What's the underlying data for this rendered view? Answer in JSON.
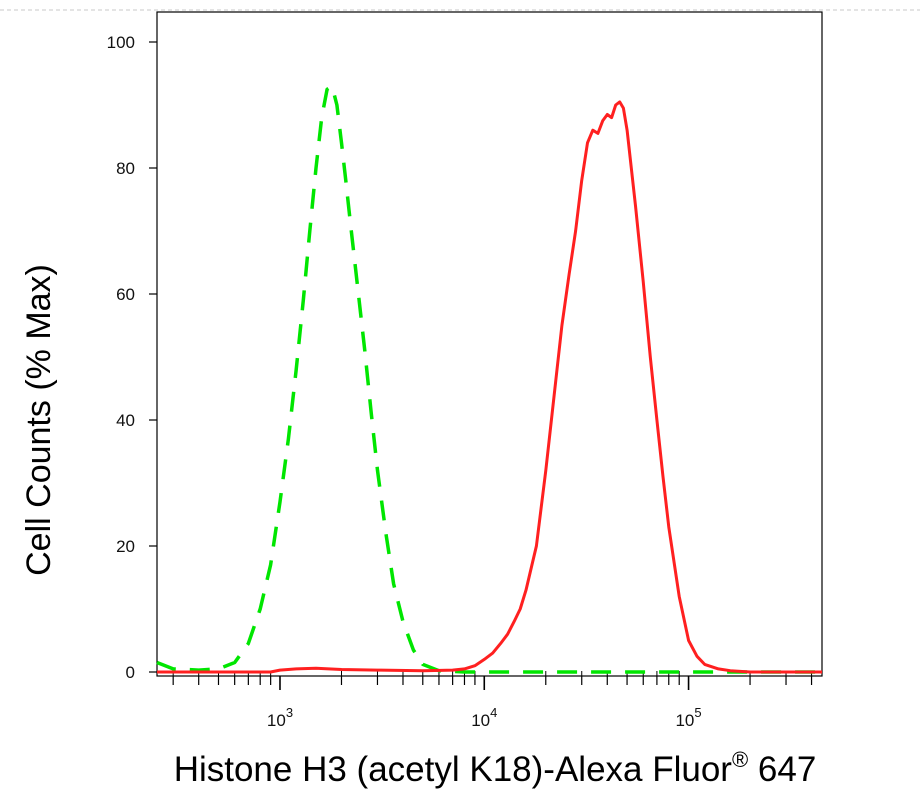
{
  "chart_data": {
    "type": "line",
    "xlabel": "Histone H3 (acetyl K18)-Alexa Fluor",
    "xlabel_sup": "®",
    "xlabel_suffix": " 647",
    "ylabel": "Cell Counts (% Max)",
    "x_scale": "log",
    "xlim": [
      250,
      450000
    ],
    "ylim": [
      0,
      100
    ],
    "y_ticks": [
      0,
      20,
      40,
      60,
      80,
      100
    ],
    "y_tick_labels": [
      "0",
      "20",
      "40",
      "60",
      "80",
      "100"
    ],
    "x_major_ticks": [
      1000,
      10000,
      100000
    ],
    "x_tick_labels": [
      {
        "base": "10",
        "exp": "3"
      },
      {
        "base": "10",
        "exp": "4"
      },
      {
        "base": "10",
        "exp": "5"
      }
    ],
    "grid": false,
    "series": [
      {
        "color": "#00e600",
        "style": "dashed",
        "x": [
          250,
          300,
          400,
          500,
          600,
          700,
          800,
          900,
          1000,
          1100,
          1200,
          1300,
          1400,
          1500,
          1600,
          1700,
          1800,
          1900,
          2000,
          2100,
          2200,
          2400,
          2600,
          2800,
          3000,
          3300,
          3600,
          4000,
          4500,
          5000,
          6000,
          8000,
          10000,
          20000,
          50000,
          100000,
          200000,
          450000
        ],
        "y": [
          1.5,
          0.5,
          0.3,
          0.5,
          1.5,
          4.5,
          10,
          17,
          27,
          37,
          48,
          59,
          70,
          80,
          88,
          92.5,
          93,
          90,
          84,
          78,
          72,
          61,
          51,
          41,
          32,
          22,
          14,
          8,
          3.5,
          1.2,
          0.2,
          0,
          0,
          0,
          0,
          0,
          0,
          0
        ]
      },
      {
        "color": "#ff2020",
        "style": "solid",
        "x": [
          250,
          300,
          400,
          600,
          900,
          1000,
          1200,
          1500,
          2000,
          3000,
          5000,
          7000,
          8000,
          9000,
          10000,
          11000,
          12000,
          13000,
          14000,
          15000,
          16000,
          18000,
          20000,
          22000,
          24000,
          26000,
          28000,
          30000,
          32000,
          34000,
          36000,
          38000,
          40000,
          42000,
          44000,
          46000,
          48000,
          50000,
          55000,
          60000,
          65000,
          70000,
          75000,
          80000,
          90000,
          100000,
          110000,
          120000,
          140000,
          160000,
          200000,
          300000,
          450000
        ],
        "y": [
          0,
          0,
          0,
          0,
          0,
          0.3,
          0.5,
          0.6,
          0.4,
          0.3,
          0.2,
          0.3,
          0.5,
          1,
          2,
          3,
          4.5,
          6,
          8,
          10,
          13,
          20,
          32,
          44,
          55,
          63,
          70,
          78,
          84,
          86,
          85.5,
          87.5,
          88.5,
          88,
          90,
          90.5,
          89.5,
          86,
          74,
          62,
          50,
          40,
          31,
          23,
          12,
          5,
          2.5,
          1.2,
          0.5,
          0.2,
          0,
          0,
          0
        ]
      }
    ]
  }
}
